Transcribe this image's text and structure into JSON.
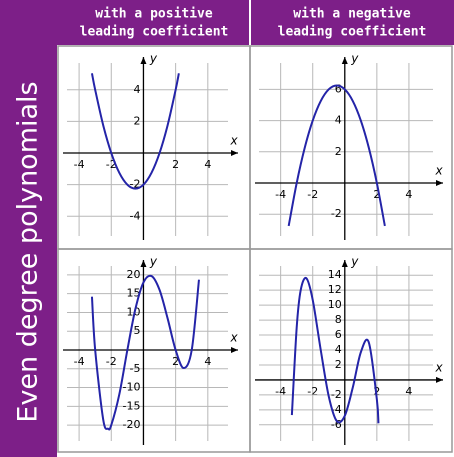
{
  "table": {
    "column_headers": [
      [
        "with a positive",
        "leading coefficient"
      ],
      [
        "with a negative",
        "leading coefficient"
      ]
    ],
    "row_header": "Even degree polynomials"
  },
  "chart_data": [
    {
      "type": "line",
      "xlabel": "x",
      "ylabel": "y",
      "x": [
        -3.2,
        -3,
        -2.5,
        -2,
        -1.5,
        -1,
        -0.5,
        0,
        0.5,
        1,
        1.5,
        2,
        2.2
      ],
      "series": [
        {
          "color": "#2424a8",
          "values": [
            5.04,
            4,
            1.75,
            0,
            -1.25,
            -2,
            -2.25,
            -2,
            -1.25,
            0,
            1.75,
            4,
            5.04
          ]
        }
      ],
      "xlim": [
        -5,
        6
      ],
      "ylim": [
        -5.5,
        6.2
      ],
      "xticks": [
        -4,
        -2,
        2,
        4
      ],
      "yticks": [
        4,
        2,
        -2,
        -4
      ],
      "grid": true
    },
    {
      "type": "line",
      "xlabel": "x",
      "ylabel": "y",
      "x": [
        -3.5,
        -3,
        -2.5,
        -2,
        -1.5,
        -1,
        -0.5,
        0,
        0.5,
        1,
        1.5,
        2,
        2.5
      ],
      "series": [
        {
          "color": "#2424a8",
          "values": [
            -2.75,
            0,
            2.25,
            4,
            5.25,
            6,
            6.25,
            6,
            5.25,
            4,
            2.25,
            0,
            -2.75
          ]
        }
      ],
      "xlim": [
        -5.6,
        6.25
      ],
      "ylim": [
        -3.65,
        8.2
      ],
      "xticks": [
        -4,
        -2,
        2,
        4
      ],
      "yticks": [
        6,
        4,
        2,
        -2
      ],
      "grid": true
    },
    {
      "type": "line",
      "xlabel": "x",
      "ylabel": "y",
      "x": [
        -3.2,
        -3,
        -2.5,
        -2.2,
        -2,
        -1.5,
        -1,
        -0.5,
        0,
        0.5,
        1,
        1.5,
        2,
        2.5,
        3,
        3.45
      ],
      "series": [
        {
          "color": "#2424a8",
          "values": [
            14.19,
            0,
            -18.56,
            -20.97,
            -20,
            -11.81,
            0,
            10.94,
            18,
            19.69,
            16,
            8.44,
            0,
            -4.81,
            0,
            18.73
          ]
        }
      ],
      "xlim": [
        -5,
        6
      ],
      "ylim": [
        -25.3,
        24.5
      ],
      "xticks": [
        -4,
        -2,
        2,
        4
      ],
      "yticks": [
        20,
        15,
        10,
        5,
        -5,
        -10,
        -15,
        -20
      ],
      "grid": true
    },
    {
      "type": "line",
      "xlabel": "x",
      "ylabel": "y",
      "x": [
        -3.3,
        -3,
        -2.75,
        -2.4,
        -2,
        -1.5,
        -1,
        -0.5,
        0,
        0.5,
        1,
        1.5,
        2,
        2.1
      ],
      "series": [
        {
          "color": "#2424a8",
          "values": [
            -4.7,
            7,
            12,
            13.6,
            10.7,
            4,
            -2.2,
            -5.5,
            -4.8,
            -1,
            3.7,
            5,
            -2.6,
            -5.8
          ]
        }
      ],
      "xlim": [
        -5.6,
        6.25
      ],
      "ylim": [
        -8.7,
        16.3
      ],
      "xticks": [
        -4,
        -2,
        2,
        4
      ],
      "yticks": [
        14,
        12,
        10,
        8,
        6,
        4,
        2,
        -2,
        -4,
        -6
      ],
      "grid": true
    }
  ]
}
